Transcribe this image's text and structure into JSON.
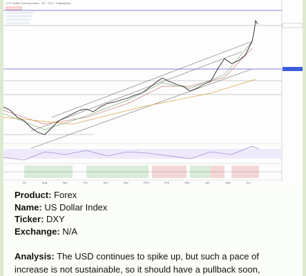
{
  "chart_image": {
    "title": "U.S. Dollar Currency Index · 1D · TVC · TradingView",
    "x_labels": [
      "Jul",
      "Aug",
      "Sep",
      "Oct",
      "Nov",
      "Dec",
      "2022",
      "Feb",
      "Mar",
      "Apr",
      "May",
      "Jun"
    ]
  },
  "post": {
    "fields": [
      {
        "label": "Product:",
        "value": "Forex"
      },
      {
        "label": "Name:",
        "value": "US Dollar Index"
      },
      {
        "label": "Ticker:",
        "value": "DXY"
      },
      {
        "label": "Exchange:",
        "value": "N/A"
      }
    ],
    "analysis": {
      "label": "Analysis:",
      "text": "The USD continues to spike up, but such a pace of increase is not sustainable, so it should have a pullback soon,"
    }
  }
}
